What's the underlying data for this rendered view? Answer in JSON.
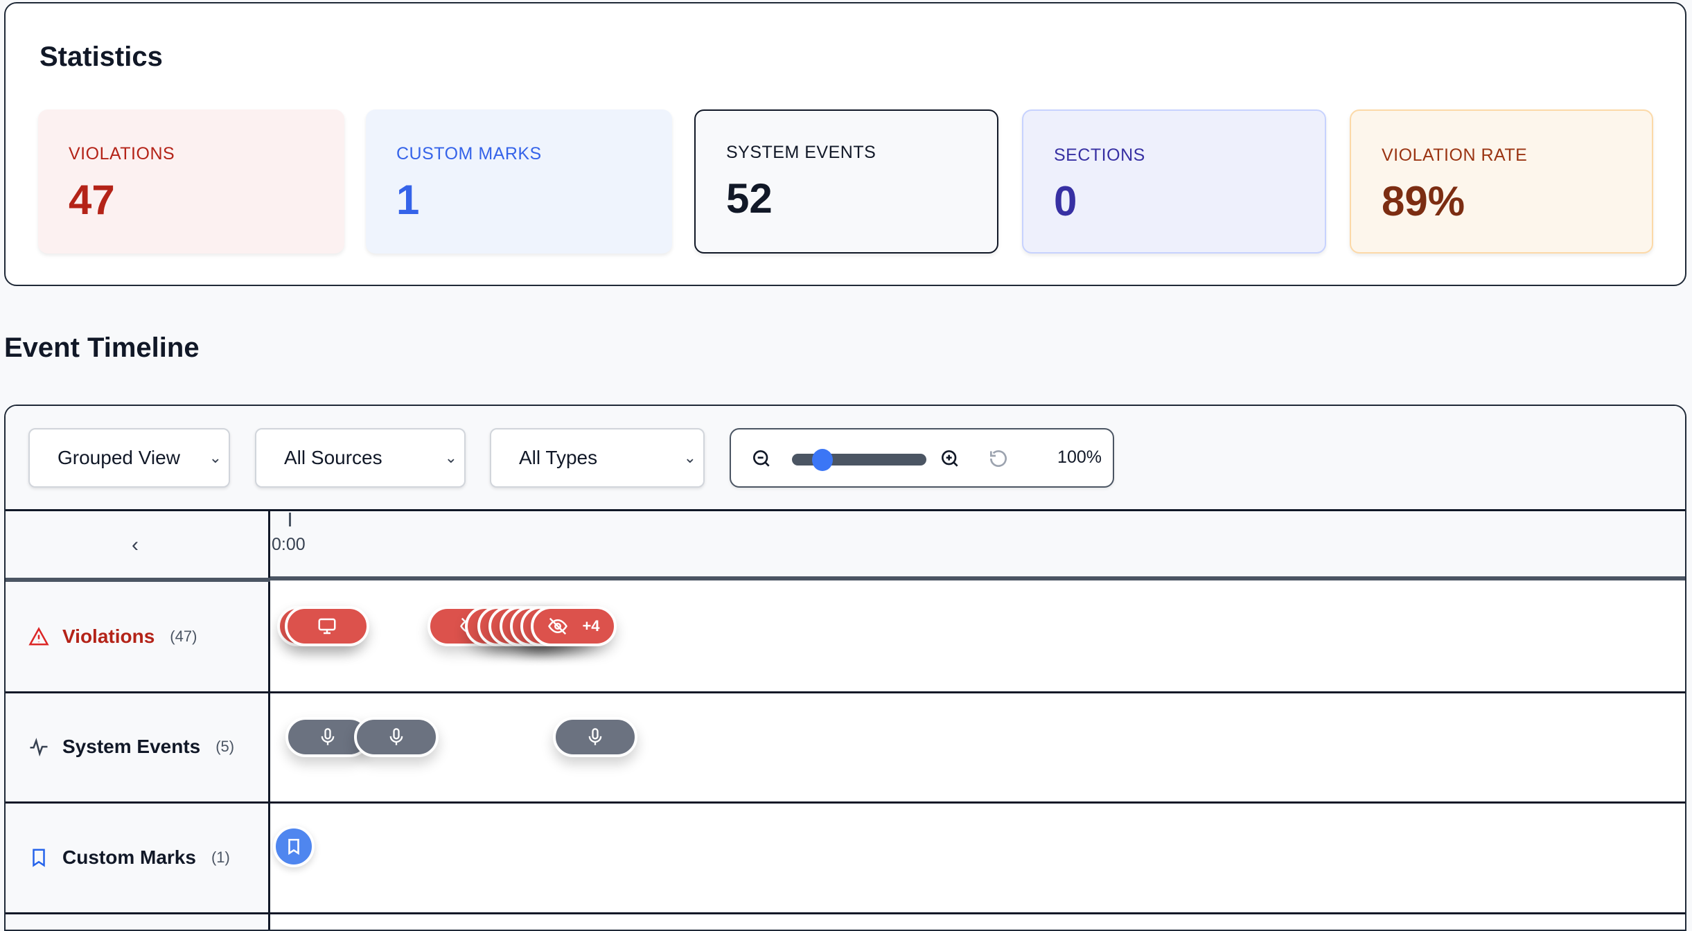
{
  "statistics": {
    "title": "Statistics",
    "cards": [
      {
        "label": "VIOLATIONS",
        "value": "47",
        "color": "#b42318",
        "bg": "#fcf1f1"
      },
      {
        "label": "CUSTOM MARKS",
        "value": "1",
        "color": "#3563e9",
        "bg": "#eff4fd"
      },
      {
        "label": "SYSTEM EVENTS",
        "value": "52",
        "color": "#111827",
        "bg": "#f8f9fb"
      },
      {
        "label": "SECTIONS",
        "value": "0",
        "color": "#3730a3",
        "bg": "#eef0fc"
      },
      {
        "label": "VIOLATION RATE",
        "value": "89%",
        "color": "#9a3412",
        "bg": "#fdf6ec"
      }
    ]
  },
  "timeline": {
    "title": "Event Timeline",
    "controls": {
      "view": "Grouped View",
      "sources": "All Sources",
      "types": "All Types",
      "zoom_label": "100%",
      "zoom_level": 0.2
    },
    "time_start": "0:00",
    "rows": [
      {
        "label": "Violations",
        "count": "(47)",
        "icon": "warning-triangle-icon",
        "overflow": "+4"
      },
      {
        "label": "System Events",
        "count": "(5)",
        "icon": "activity-icon"
      },
      {
        "label": "Custom Marks",
        "count": "(1)",
        "icon": "bookmark-icon"
      }
    ]
  }
}
